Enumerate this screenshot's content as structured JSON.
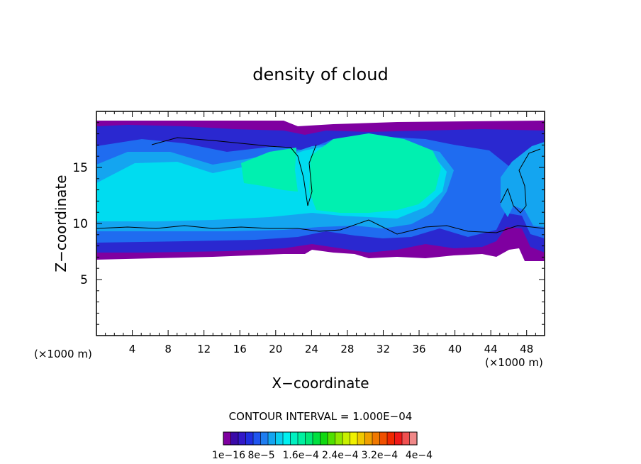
{
  "chart_data": {
    "type": "heatmap",
    "title": "density of cloud",
    "xlabel": "X−coordinate",
    "ylabel": "Z−coordinate",
    "x_unit_left": "(×1000 m)",
    "x_unit_right": "(×1000 m)",
    "xlim": [
      0,
      50
    ],
    "ylim": [
      0,
      20
    ],
    "x_ticks": [
      4,
      8,
      12,
      16,
      20,
      24,
      28,
      32,
      36,
      40,
      44,
      48
    ],
    "x_tick_labels": [
      "4",
      "8",
      "12",
      "16",
      "20",
      "24",
      "28",
      "32",
      "36",
      "40",
      "44",
      "48"
    ],
    "y_ticks": [
      5,
      10,
      15
    ],
    "y_tick_labels": [
      "5",
      "10",
      "15"
    ],
    "contour_interval_text": "CONTOUR INTERVAL = 1.000E−04",
    "colorbar": {
      "min": 1e-16,
      "max": 0.0004,
      "tick_labels": [
        "1e−16",
        "8e−5",
        "1.6e−4",
        "2.4e−4",
        "3.2e−4",
        "4e−4"
      ],
      "colors": [
        "#7f00a0",
        "#3a0aa8",
        "#3218c8",
        "#1f2ee0",
        "#1f55f0",
        "#1f7df0",
        "#14a5f0",
        "#0acdf0",
        "#00f0f0",
        "#00f0c0",
        "#00f0a0",
        "#00e878",
        "#00e040",
        "#10d810",
        "#50e000",
        "#90e800",
        "#c8f000",
        "#f0f000",
        "#f0c800",
        "#f0a000",
        "#f07800",
        "#f05000",
        "#f02800",
        "#f01818",
        "#f05050",
        "#f08888"
      ]
    },
    "cloud_layers": [
      {
        "level": "purple",
        "color": "#7f00a0",
        "z_range": [
          6.8,
          18.8
        ]
      },
      {
        "level": "dark-blue",
        "color": "#2a28d0",
        "z_range": [
          7.4,
          18.5
        ]
      },
      {
        "level": "blue",
        "color": "#1f6cf0",
        "z_range": [
          8.3,
          17.6
        ]
      },
      {
        "level": "light-blue",
        "color": "#14a5f0",
        "z_range": [
          9.6,
          16.4
        ]
      },
      {
        "level": "cyan",
        "color": "#00dcf0",
        "z_range": [
          10.2,
          15.6
        ]
      },
      {
        "level": "aqua-green",
        "color": "#00f0b0",
        "z_range": [
          11.2,
          16.2
        ]
      }
    ]
  }
}
